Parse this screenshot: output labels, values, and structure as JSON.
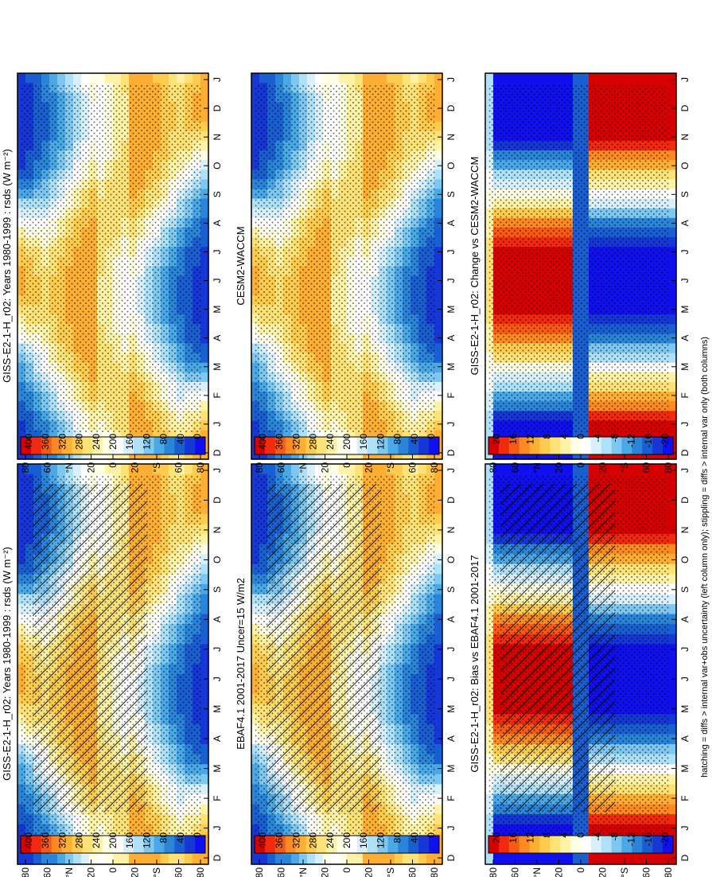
{
  "footnote": "hatching = diffs > internal var+obs uncertainty (left column only); stippling = diffs > internal var only (both columns)",
  "month_ticks": [
    "D",
    "J",
    "F",
    "M",
    "A",
    "M",
    "J",
    "J",
    "A",
    "S",
    "O",
    "N",
    "D",
    "J"
  ],
  "lat_ticks": [
    "80",
    "60",
    "°N",
    "20",
    "0",
    "20",
    "°S",
    "60",
    "80"
  ],
  "colors": {
    "warm": [
      "#d70000",
      "#ef2a0e",
      "#f85a14",
      "#fb8a22",
      "#fdae33",
      "#fdcb4e",
      "#fde277",
      "#fdf2a6",
      "#ffffe6"
    ],
    "white": "#ffffff",
    "cool": [
      "#d8f0fb",
      "#aee0f7",
      "#7dc7f0",
      "#4aa8e6",
      "#2a84d8",
      "#1a5fd1",
      "#1636d6",
      "#1010ee"
    ]
  },
  "panels": [
    {
      "id": "model-left",
      "title": "GISS-E2-1-H_r02: Years 1980-1999 : rsds (W m⁻²)",
      "colorbar": [
        "400",
        "360",
        "320",
        "280",
        "240",
        "200",
        "160",
        "120",
        "80",
        "40",
        "0"
      ],
      "hatching": true,
      "stippling": true
    },
    {
      "id": "model-right",
      "title": "GISS-E2-1-H_r02: Years 1980-1999 : rsds (W m⁻²)",
      "colorbar": [
        "400",
        "360",
        "320",
        "280",
        "240",
        "200",
        "160",
        "120",
        "80",
        "40",
        "0"
      ],
      "hatching": false,
      "stippling": true
    },
    {
      "id": "obs",
      "title": "EBAF4.1 2001-2017 Uncer=15 W/m2",
      "colorbar": [
        "400",
        "360",
        "320",
        "280",
        "240",
        "200",
        "160",
        "120",
        "80",
        "40",
        "0"
      ],
      "hatching": true,
      "stippling": true
    },
    {
      "id": "ref-model",
      "title": "CESM2-WACCM",
      "colorbar": [
        "400",
        "360",
        "320",
        "280",
        "240",
        "200",
        "160",
        "120",
        "80",
        "40",
        "0"
      ],
      "hatching": false,
      "stippling": true
    },
    {
      "id": "bias",
      "title": "GISS-E2-1-H_r02: Bias vs EBAF4.1 2001-2017",
      "colorbar": [
        "20",
        "16",
        "12",
        "8",
        "4",
        "0",
        "-4",
        "-8",
        "-12",
        "-16",
        "-20"
      ],
      "hatching": true,
      "stippling": true
    },
    {
      "id": "change",
      "title": "GISS-E2-1-H_r02: Change vs CESM2-WACCM",
      "colorbar": [
        "20",
        "16",
        "12",
        "8",
        "4",
        "0",
        "-4",
        "-8",
        "-12",
        "-16",
        "-20"
      ],
      "hatching": false,
      "stippling": true
    }
  ],
  "chart_data": [
    {
      "type": "heatmap",
      "title": "GISS-E2-1-H_r02: Years 1980-1999 : rsds (W m⁻²)",
      "x": [
        "D",
        "J",
        "F",
        "M",
        "A",
        "M",
        "J",
        "J",
        "A",
        "S",
        "O",
        "N",
        "D",
        "J"
      ],
      "y": [
        "80",
        "60",
        "°N",
        "20",
        "0",
        "20",
        "°S",
        "60",
        "80"
      ],
      "colorbar_range": [
        0,
        400
      ]
    },
    {
      "type": "heatmap",
      "title": "EBAF4.1 2001-2017 Uncer=15 W/m2",
      "x": [
        "D",
        "J",
        "F",
        "M",
        "A",
        "M",
        "J",
        "J",
        "A",
        "S",
        "O",
        "N",
        "D",
        "J"
      ],
      "y": [
        "80",
        "60",
        "°N",
        "20",
        "0",
        "20",
        "°S",
        "60",
        "80"
      ],
      "colorbar_range": [
        0,
        400
      ]
    },
    {
      "type": "heatmap",
      "title": "CESM2-WACCM",
      "x": [
        "D",
        "J",
        "F",
        "M",
        "A",
        "M",
        "J",
        "J",
        "A",
        "S",
        "O",
        "N",
        "D",
        "J"
      ],
      "y": [
        "80",
        "60",
        "°N",
        "20",
        "0",
        "20",
        "°S",
        "60",
        "80"
      ],
      "colorbar_range": [
        0,
        400
      ]
    },
    {
      "type": "heatmap",
      "title": "GISS-E2-1-H_r02: Bias vs EBAF4.1 2001-2017",
      "x": [
        "D",
        "J",
        "F",
        "M",
        "A",
        "M",
        "J",
        "J",
        "A",
        "S",
        "O",
        "N",
        "D",
        "J"
      ],
      "y": [
        "80",
        "60",
        "°N",
        "20",
        "0",
        "20",
        "°S",
        "60",
        "80"
      ],
      "colorbar_range": [
        -20,
        20
      ]
    },
    {
      "type": "heatmap",
      "title": "GISS-E2-1-H_r02: Change vs CESM2-WACCM",
      "x": [
        "D",
        "J",
        "F",
        "M",
        "A",
        "M",
        "J",
        "J",
        "A",
        "S",
        "O",
        "N",
        "D",
        "J"
      ],
      "y": [
        "80",
        "60",
        "°N",
        "20",
        "0",
        "20",
        "°S",
        "60",
        "80"
      ],
      "colorbar_range": [
        -20,
        20
      ]
    }
  ]
}
